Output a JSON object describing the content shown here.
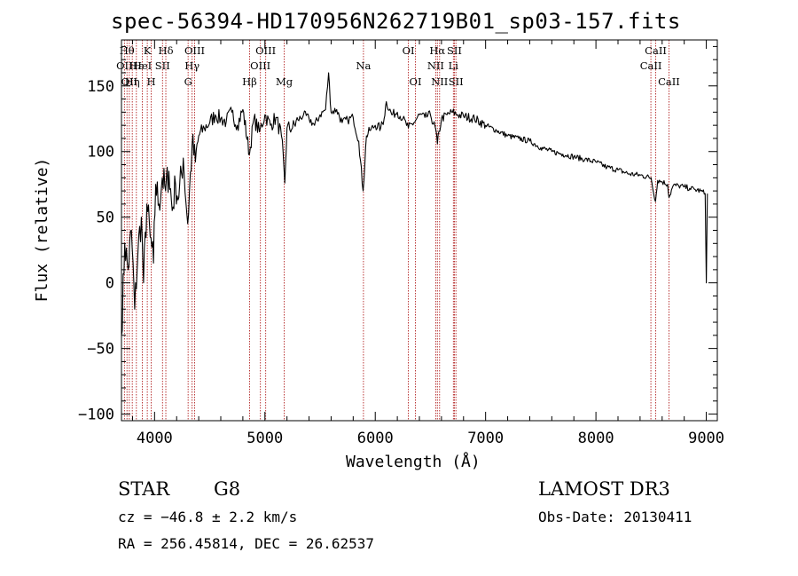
{
  "chart_data": {
    "type": "line",
    "title": "spec-56394-HD170956N262719B01_sp03-157.fits",
    "xlabel": "Wavelength (Å)",
    "ylabel": "Flux (relative)",
    "xlim": [
      3700,
      9100
    ],
    "ylim": [
      -105,
      185
    ],
    "x_ticks": [
      4000,
      5000,
      6000,
      7000,
      8000,
      9000
    ],
    "x_tick_labels": [
      "4000",
      "5000",
      "6000",
      "7000",
      "8000",
      "9000"
    ],
    "y_ticks": [
      -100,
      -50,
      0,
      50,
      100,
      150
    ],
    "y_tick_labels": [
      "−100",
      "−50",
      "0",
      "50",
      "100",
      "150"
    ],
    "grid": false,
    "series": [
      {
        "name": "flux",
        "x": [
          3700,
          3730,
          3760,
          3790,
          3820,
          3850,
          3880,
          3900,
          3930,
          3960,
          3990,
          4010,
          4040,
          4070,
          4100,
          4130,
          4160,
          4190,
          4220,
          4260,
          4300,
          4340,
          4370,
          4400,
          4450,
          4500,
          4550,
          4600,
          4650,
          4700,
          4750,
          4800,
          4860,
          4900,
          4950,
          5000,
          5050,
          5100,
          5150,
          5180,
          5200,
          5250,
          5300,
          5350,
          5400,
          5450,
          5500,
          5550,
          5577,
          5600,
          5650,
          5700,
          5750,
          5800,
          5850,
          5890,
          5920,
          5950,
          6000,
          6050,
          6080,
          6100,
          6150,
          6200,
          6250,
          6300,
          6350,
          6400,
          6450,
          6500,
          6550,
          6563,
          6600,
          6650,
          6700,
          6750,
          6800,
          6900,
          7000,
          7100,
          7200,
          7300,
          7400,
          7500,
          7600,
          7700,
          7800,
          7900,
          8000,
          8100,
          8200,
          8300,
          8400,
          8500,
          8540,
          8560,
          8600,
          8650,
          8662,
          8700,
          8750,
          8800,
          8850,
          8900,
          8950,
          8990,
          9000,
          9010
        ],
        "y": [
          -40,
          30,
          10,
          40,
          -20,
          25,
          50,
          0,
          60,
          35,
          15,
          75,
          60,
          80,
          70,
          85,
          55,
          75,
          65,
          95,
          45,
          105,
          92,
          112,
          118,
          122,
          128,
          125,
          123,
          130,
          120,
          132,
          98,
          125,
          115,
          128,
          120,
          126,
          112,
          76,
          118,
          118,
          124,
          128,
          125,
          120,
          128,
          132,
          160,
          130,
          132,
          122,
          124,
          126,
          108,
          70,
          112,
          116,
          120,
          118,
          125,
          138,
          128,
          130,
          125,
          118,
          122,
          128,
          126,
          128,
          116,
          106,
          125,
          128,
          130,
          128,
          127,
          125,
          120,
          116,
          112,
          110,
          108,
          103,
          100,
          98,
          96,
          94,
          92,
          88,
          86,
          83,
          82,
          80,
          62,
          78,
          77,
          75,
          65,
          74,
          74,
          73,
          72,
          71,
          70,
          68,
          0,
          68
        ]
      }
    ],
    "lines": [
      {
        "wavelength": 3727,
        "label": "OII",
        "row": 2
      },
      {
        "wavelength": 3750,
        "label": "Hθ",
        "row": 1
      },
      {
        "wavelength": 3771,
        "label": "OII",
        "row": 3
      },
      {
        "wavelength": 3798,
        "label": "Hη",
        "row": 3
      },
      {
        "wavelength": 3835,
        "label": "Hε",
        "row": 2
      },
      {
        "wavelength": 3889,
        "label": "HeI",
        "row": 2
      },
      {
        "wavelength": 3934,
        "label": "K",
        "row": 1
      },
      {
        "wavelength": 3969,
        "label": "H",
        "row": 3
      },
      {
        "wavelength": 4072,
        "label": "SII",
        "row": 2
      },
      {
        "wavelength": 4102,
        "label": "Hδ",
        "row": 1
      },
      {
        "wavelength": 4304,
        "label": "G",
        "row": 3
      },
      {
        "wavelength": 4340,
        "label": "Hγ",
        "row": 2
      },
      {
        "wavelength": 4363,
        "label": "OIII",
        "row": 1
      },
      {
        "wavelength": 4861,
        "label": "Hβ",
        "row": 3
      },
      {
        "wavelength": 4959,
        "label": "OIII",
        "row": 2
      },
      {
        "wavelength": 5007,
        "label": "OIII",
        "row": 1
      },
      {
        "wavelength": 5175,
        "label": "Mg",
        "row": 3
      },
      {
        "wavelength": 5893,
        "label": "Na",
        "row": 2
      },
      {
        "wavelength": 6300,
        "label": "OI",
        "row": 1
      },
      {
        "wavelength": 6364,
        "label": "OI",
        "row": 3
      },
      {
        "wavelength": 6548,
        "label": "NII",
        "row": 2
      },
      {
        "wavelength": 6563,
        "label": "Hα",
        "row": 1
      },
      {
        "wavelength": 6583,
        "label": "NII",
        "row": 3
      },
      {
        "wavelength": 6708,
        "label": "Li",
        "row": 2
      },
      {
        "wavelength": 6717,
        "label": "SII",
        "row": 1
      },
      {
        "wavelength": 6731,
        "label": "SII",
        "row": 3
      },
      {
        "wavelength": 8498,
        "label": "CaII",
        "row": 2
      },
      {
        "wavelength": 8542,
        "label": "CaII",
        "row": 1
      },
      {
        "wavelength": 8662,
        "label": "CaII",
        "row": 3
      }
    ]
  },
  "info": {
    "object_class": "STAR",
    "subclass": "G8",
    "survey": "LAMOST DR3",
    "redshift_line": "cz = −46.8 ± 2.2 km/s",
    "obs_date_line": "Obs-Date: 20130411",
    "coords_line": "RA = 256.45814, DEC =  26.62537"
  },
  "colors": {
    "spectrum": "#000000",
    "line_markers": "#b22222",
    "axes": "#000000"
  }
}
